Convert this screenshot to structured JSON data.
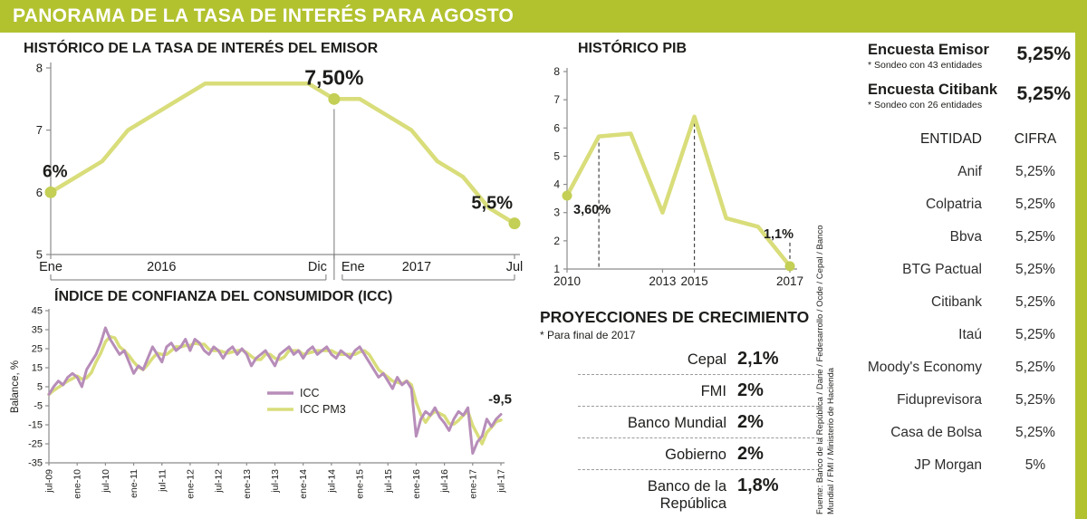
{
  "colors": {
    "accent": "#b2c22f",
    "line_green": "#d9dd7a",
    "dot_green": "#c3cf55",
    "line_purple": "#b78db9",
    "axis": "#8c8c8c",
    "text_dark": "#1d1d1b"
  },
  "banner": {
    "title": "PANORAMA DE LA TASA DE INTERÉS PARA AGOSTO"
  },
  "chart_data": [
    {
      "id": "rate",
      "type": "line",
      "title": "HISTÓRICO DE LA TASA DE INTERÉS DEL EMISOR",
      "unit": "%",
      "ylim": [
        5,
        8
      ],
      "y_ticks": [
        8,
        7,
        6,
        5
      ],
      "x": [
        "ene-16",
        "feb-16",
        "mar-16",
        "abr-16",
        "may-16",
        "jun-16",
        "jul-16",
        "ago-16",
        "sep-16",
        "oct-16",
        "nov-16",
        "dic-16",
        "ene-17",
        "feb-17",
        "mar-17",
        "abr-17",
        "may-17",
        "jun-17",
        "jul-17"
      ],
      "values": [
        6.0,
        6.25,
        6.5,
        7.0,
        7.25,
        7.5,
        7.75,
        7.75,
        7.75,
        7.75,
        7.75,
        7.5,
        7.5,
        7.25,
        7.0,
        6.5,
        6.25,
        5.75,
        5.5
      ],
      "marked_points": [
        {
          "index": 0,
          "label": "6%"
        },
        {
          "index": 11,
          "label": "7,50%"
        },
        {
          "index": 18,
          "label": "5,5%"
        }
      ],
      "x_axis_labels": [
        {
          "pos": 0,
          "text": "Ene"
        },
        {
          "pos": 4.3,
          "text": "2016"
        },
        {
          "pos": 11,
          "text": "Dic",
          "side": "left"
        },
        {
          "pos": 11,
          "text": "Ene",
          "side": "right"
        },
        {
          "pos": 14.2,
          "text": "2017"
        },
        {
          "pos": 18,
          "text": "Jul"
        }
      ],
      "year_brackets": [
        {
          "from": 0,
          "to": 11
        },
        {
          "from": 11,
          "to": 18
        }
      ],
      "divider_index": 11
    },
    {
      "id": "icc",
      "type": "line",
      "title": "ÍNDICE DE CONFIANZA DEL CONSUMIDOR (ICC)",
      "ylabel": "Balance, %",
      "ylim": [
        -35,
        45
      ],
      "y_ticks": [
        45,
        35,
        25,
        15,
        5,
        -5,
        -15,
        -25,
        -35
      ],
      "x_tick_labels": [
        "jul-09",
        "ene-10",
        "jul-10",
        "ene-11",
        "jul-11",
        "ene-12",
        "jul-12",
        "ene-13",
        "jul-13",
        "ene-14",
        "jul-14",
        "ene-15",
        "jul-15",
        "ene-16",
        "jul-16",
        "ene-17",
        "jul-17"
      ],
      "x_tick_step": 6,
      "series": [
        {
          "name": "ICC",
          "color_key": "line_purple",
          "values": [
            1,
            5,
            8,
            6,
            10,
            12,
            10,
            5,
            14,
            18,
            22,
            28,
            36,
            30,
            26,
            22,
            24,
            18,
            12,
            16,
            14,
            20,
            26,
            22,
            18,
            26,
            28,
            24,
            26,
            30,
            24,
            30,
            28,
            24,
            22,
            26,
            24,
            20,
            24,
            26,
            22,
            25,
            22,
            16,
            20,
            22,
            24,
            20,
            16,
            22,
            24,
            26,
            22,
            24,
            20,
            24,
            26,
            22,
            24,
            26,
            22,
            20,
            24,
            22,
            20,
            24,
            26,
            22,
            18,
            14,
            10,
            12,
            8,
            4,
            10,
            6,
            8,
            4,
            -21,
            -12,
            -8,
            -10,
            -6,
            -11,
            -14,
            -18,
            -12,
            -8,
            -10,
            -6,
            -30,
            -24,
            -21,
            -12,
            -16,
            -12,
            -9.5
          ]
        },
        {
          "name": "ICC PM3",
          "color_key": "line_green",
          "derived": "3-month moving average of ICC"
        }
      ],
      "end_annotation": "-9,5",
      "legend_position": "center-right"
    },
    {
      "id": "pib",
      "type": "line",
      "title": "HISTÓRICO PIB",
      "unit": "%",
      "ylim": [
        1,
        8
      ],
      "y_ticks": [
        8,
        7,
        6,
        5,
        4,
        3,
        2,
        1
      ],
      "x": [
        2010,
        2011,
        2012,
        2013,
        2014,
        2015,
        2016,
        2017
      ],
      "values": [
        3.6,
        5.7,
        5.8,
        3.0,
        6.4,
        2.8,
        2.5,
        1.1
      ],
      "x_axis_labels": [
        {
          "pos": 0,
          "text": "2010"
        },
        {
          "pos": 3,
          "text": "2013"
        },
        {
          "pos": 4,
          "text": "2015"
        },
        {
          "pos": 7,
          "text": "2017"
        }
      ],
      "dashed_guides": [
        1,
        4
      ],
      "marked_points": [
        {
          "index": 0,
          "label": "3,60%"
        },
        {
          "index": 7,
          "label": "1,1%"
        }
      ]
    }
  ],
  "projections": {
    "title": "PROYECCIONES DE CRECIMIENTO",
    "note": "* Para final de 2017",
    "rows": [
      {
        "label": "Cepal",
        "value": "2,1%"
      },
      {
        "label": "FMI",
        "value": "2%"
      },
      {
        "label": "Banco Mundial",
        "value": "2%"
      },
      {
        "label": "Gobierno",
        "value": "2%"
      },
      {
        "label": "Banco de la República",
        "value": "1,8%"
      }
    ]
  },
  "surveys": [
    {
      "title": "Encuesta Emisor",
      "note": "* Sondeo con 43 entidades",
      "value": "5,25%"
    },
    {
      "title": "Encuesta Citibank",
      "note": "* Sondeo con 26 entidades",
      "value": "5,25%"
    }
  ],
  "entity_table": {
    "headers": [
      "ENTIDAD",
      "CIFRA"
    ],
    "rows": [
      {
        "entity": "Anif",
        "value": "5,25%"
      },
      {
        "entity": "Colpatria",
        "value": "5,25%"
      },
      {
        "entity": "Bbva",
        "value": "5,25%"
      },
      {
        "entity": "BTG Pactual",
        "value": "5,25%"
      },
      {
        "entity": "Citibank",
        "value": "5,25%"
      },
      {
        "entity": "Itaú",
        "value": "5,25%"
      },
      {
        "entity": "Moody's Economy",
        "value": "5,25%"
      },
      {
        "entity": "Fiduprevisora",
        "value": "5,25%"
      },
      {
        "entity": "Casa de Bolsa",
        "value": "5,25%"
      },
      {
        "entity": "JP Morgan",
        "value": "5%"
      }
    ]
  },
  "source": "Fuente: Banco de la República / Dane / Fedesarrollo / Ocde / Cepal / Banco Mundial / FMI / Ministerio de Hacienda"
}
